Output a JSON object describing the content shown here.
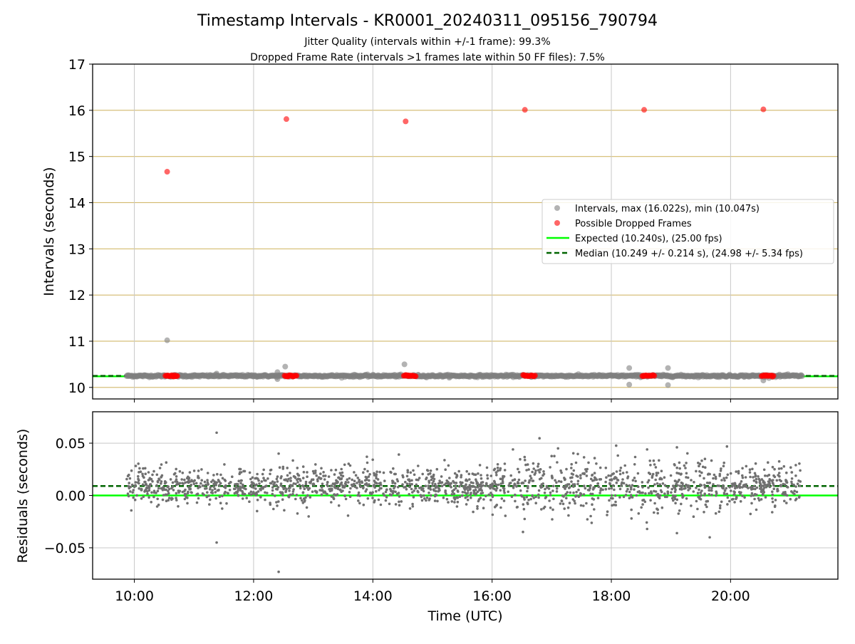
{
  "chart_data": [
    {
      "type": "scatter",
      "title": "Timestamp Intervals - KR0001_20240311_095156_790794",
      "subtitle_lines": [
        "Jitter Quality (intervals within +/-1 frame): 99.3%",
        "Dropped Frame Rate (intervals >1 frames late within 50 FF files): 7.5%"
      ],
      "xlabel": "",
      "ylabel": "Intervals (seconds)",
      "x_unit": "hours UTC",
      "xlim": [
        9.3,
        21.8
      ],
      "ylim": [
        9.75,
        17
      ],
      "yticks": [
        10,
        11,
        12,
        13,
        14,
        15,
        16,
        17
      ],
      "xticks": [
        10,
        12,
        14,
        16,
        18,
        20
      ],
      "grid": true,
      "legend_position": "center-right",
      "colors": {
        "intervals": "#808080",
        "dropped": "#ff0000",
        "expected": "#00ff00",
        "median": "#006400",
        "hgrid": "#d2b96b",
        "vgrid": "#c8c8c8"
      },
      "series": [
        {
          "name": "Intervals, max (16.022s), min (10.047s)",
          "kind": "scatter",
          "x_range": [
            9.87,
            21.2
          ],
          "baseline": 10.249,
          "outliers": [
            {
              "x": 10.55,
              "y": 11.02
            },
            {
              "x": 11.38,
              "y": 10.3
            },
            {
              "x": 12.4,
              "y": 10.18
            },
            {
              "x": 12.4,
              "y": 10.33
            },
            {
              "x": 12.53,
              "y": 10.45
            },
            {
              "x": 14.53,
              "y": 10.5
            },
            {
              "x": 18.3,
              "y": 10.42
            },
            {
              "x": 18.3,
              "y": 10.06
            },
            {
              "x": 18.95,
              "y": 10.42
            },
            {
              "x": 18.95,
              "y": 10.05
            },
            {
              "x": 20.55,
              "y": 10.15
            }
          ]
        },
        {
          "name": "Possible Dropped Frames",
          "kind": "scatter",
          "points": [
            {
              "x": 10.55,
              "y": 14.67
            },
            {
              "x": 12.55,
              "y": 15.81
            },
            {
              "x": 14.55,
              "y": 15.76
            },
            {
              "x": 16.55,
              "y": 16.01
            },
            {
              "x": 18.55,
              "y": 16.01
            },
            {
              "x": 20.55,
              "y": 16.02
            }
          ],
          "clusters": [
            {
              "x_start": 10.52,
              "x_end": 10.72,
              "y": 10.25
            },
            {
              "x_start": 12.52,
              "x_end": 12.72,
              "y": 10.25
            },
            {
              "x_start": 14.52,
              "x_end": 14.72,
              "y": 10.25
            },
            {
              "x_start": 16.52,
              "x_end": 16.72,
              "y": 10.25
            },
            {
              "x_start": 18.52,
              "x_end": 18.72,
              "y": 10.25
            },
            {
              "x_start": 20.52,
              "x_end": 20.72,
              "y": 10.25
            }
          ]
        },
        {
          "name": "Expected (10.240s), (25.00 fps)",
          "kind": "hline",
          "y": 10.24
        },
        {
          "name": "Median (10.249 +/- 0.214 s), (24.98 +/- 5.34 fps)",
          "kind": "hline",
          "y": 10.249
        }
      ]
    },
    {
      "type": "scatter",
      "title": "",
      "xlabel": "Time (UTC)",
      "ylabel": "Residuals (seconds)",
      "xlim": [
        9.3,
        21.8
      ],
      "ylim": [
        -0.08,
        0.08
      ],
      "yticks": [
        -0.05,
        0.0,
        0.05
      ],
      "ytick_labels": [
        "−0.05",
        "0.00",
        "0.05"
      ],
      "xticks": [
        10,
        12,
        14,
        16,
        18,
        20
      ],
      "xtick_labels": [
        "10:00",
        "12:00",
        "14:00",
        "16:00",
        "18:00",
        "20:00"
      ],
      "grid": true,
      "colors": {
        "points": "#707070",
        "zero_line": "#00ff00",
        "median": "#006400",
        "grid": "#c8c8c8"
      },
      "series": [
        {
          "name": "",
          "kind": "scatter",
          "x_range": [
            9.87,
            21.2
          ],
          "center": 0.009,
          "outliers": [
            {
              "x": 11.38,
              "y": 0.06
            },
            {
              "x": 11.38,
              "y": -0.045
            },
            {
              "x": 12.42,
              "y": -0.073
            },
            {
              "x": 12.42,
              "y": 0.04
            },
            {
              "x": 13.9,
              "y": 0.037
            },
            {
              "x": 16.35,
              "y": 0.044
            },
            {
              "x": 18.6,
              "y": 0.044
            },
            {
              "x": 19.1,
              "y": 0.046
            },
            {
              "x": 19.65,
              "y": -0.04
            },
            {
              "x": 18.6,
              "y": -0.032
            },
            {
              "x": 19.1,
              "y": -0.036
            }
          ]
        },
        {
          "name": "",
          "kind": "hline",
          "y": 0.0
        },
        {
          "name": "",
          "kind": "hline",
          "y": 0.009
        }
      ]
    }
  ]
}
